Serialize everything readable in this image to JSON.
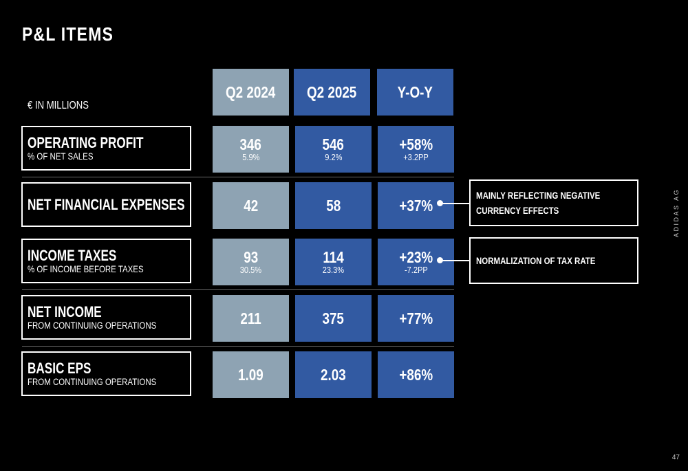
{
  "title": "P&L ITEMS",
  "unit_label": "€ IN MILLIONS",
  "columns": [
    "Q2 2024",
    "Q2 2025",
    "Y-O-Y"
  ],
  "rows": [
    {
      "label": "OPERATING PROFIT",
      "sublabel": "% OF NET SALES",
      "q2_2024": "346",
      "q2_2024_sub": "5.9%",
      "q2_2025": "546",
      "q2_2025_sub": "9.2%",
      "yoy": "+58%",
      "yoy_sub": "+3.2PP"
    },
    {
      "label": "NET FINANCIAL EXPENSES",
      "sublabel": "",
      "q2_2024": "42",
      "q2_2024_sub": "",
      "q2_2025": "58",
      "q2_2025_sub": "",
      "yoy": "+37%",
      "yoy_sub": ""
    },
    {
      "label": "INCOME TAXES",
      "sublabel": "% OF INCOME BEFORE TAXES",
      "q2_2024": "93",
      "q2_2024_sub": "30.5%",
      "q2_2025": "114",
      "q2_2025_sub": "23.3%",
      "yoy": "+23%",
      "yoy_sub": "-7.2PP"
    },
    {
      "label": "NET INCOME",
      "sublabel": "FROM CONTINUING OPERATIONS",
      "q2_2024": "211",
      "q2_2024_sub": "",
      "q2_2025": "375",
      "q2_2025_sub": "",
      "yoy": "+77%",
      "yoy_sub": ""
    },
    {
      "label": "BASIC EPS",
      "sublabel": "FROM CONTINUING OPERATIONS",
      "q2_2024": "1.09",
      "q2_2024_sub": "",
      "q2_2025": "2.03",
      "q2_2025_sub": "",
      "yoy": "+86%",
      "yoy_sub": ""
    }
  ],
  "notes": [
    "MAINLY REFLECTING NEGATIVE CURRENCY EFFECTS",
    "NORMALIZATION OF TAX RATE"
  ],
  "brand": "ADIDAS AG",
  "page_number": "47",
  "colors": {
    "q2_2024": "#8ea3b3",
    "q2_2025": "#325aa2",
    "yoy": "#325aa2",
    "background": "#000000"
  }
}
